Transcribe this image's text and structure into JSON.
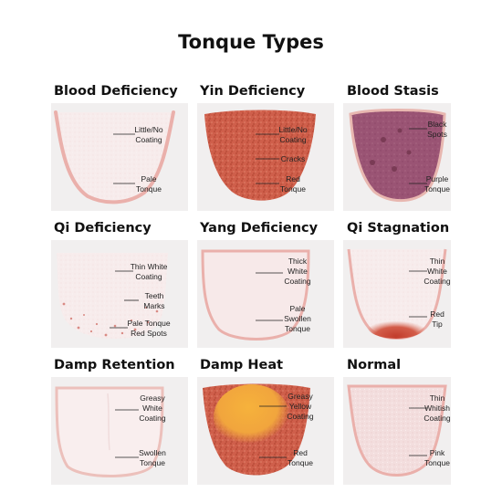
{
  "title": "Tonque Types",
  "cells": [
    {
      "name": "Blood Deficiency",
      "labels": [
        "Little/No\nCoating",
        "Pale\nTonque"
      ]
    },
    {
      "name": "Yin Deficiency",
      "labels": [
        "Little/No\nCoating",
        "Cracks",
        "Red\nTonque"
      ]
    },
    {
      "name": "Blood Stasis",
      "labels": [
        "Black\nSpots",
        "Purple\nTonque"
      ]
    },
    {
      "name": "Qi Deficiency",
      "labels": [
        "Thin White\nCoating",
        "Teeth\nMarks",
        "Pale Tonque\nRed Spots"
      ]
    },
    {
      "name": "Yang Deficiency",
      "labels": [
        "Thick\nWhite\nCoating",
        "Pale\nSwollen\nTonque"
      ]
    },
    {
      "name": "Qi Stagnation",
      "labels": [
        "Thin\nWhite\nCoating",
        "Red\nTip"
      ]
    },
    {
      "name": "Damp Retention",
      "labels": [
        "Greasy\nWhite\nCoating",
        "Swollen\nTonque"
      ]
    },
    {
      "name": "Damp Heat",
      "labels": [
        "Greasy\nYellow\nCoating",
        "Red\nTonque"
      ]
    },
    {
      "name": "Normal",
      "labels": [
        "Thin\nWhitish\nCoating",
        "Pink\nTonque"
      ]
    }
  ],
  "colors": {
    "panel_bg": "#f1efef",
    "pale_pink": "#f6e6e6",
    "tongue_border": "#eab0ab",
    "red": "#c9553f",
    "purple": "#97506f",
    "yellow": "#f0a63a",
    "pink": "#f2dede"
  }
}
